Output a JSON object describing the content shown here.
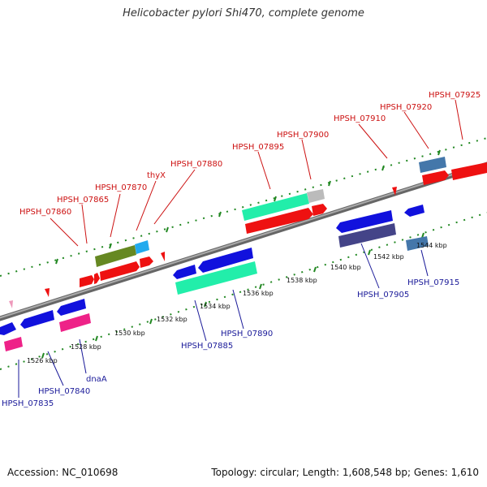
{
  "title": "Helicobacter pylori Shi470, complete genome",
  "footer": {
    "accession": "Accession: NC_010698",
    "topology": "Topology: circular; Length: 1,608,548 bp; Genes: 1,610"
  },
  "colors": {
    "forward_label": "#cc1111",
    "reverse_label": "#1a1a99",
    "red_gene": "#ee1111",
    "blue_gene": "#1111dd",
    "teal_gene": "#22eeaa",
    "olive_gene": "#668822",
    "cyan_gene": "#22aaee",
    "steel_gene": "#4477aa",
    "navy_gene": "#444488",
    "pink_gene": "#ee2288",
    "gray_gene": "#bbbbbb",
    "tick_green": "#228822",
    "backbone": "#888888"
  },
  "kbp_labels": [
    "1526 kbp",
    "1528 kbp",
    "1530 kbp",
    "1532 kbp",
    "1534 kbp",
    "1536 kbp",
    "1538 kbp",
    "1540 kbp",
    "1542 kbp",
    "1544 kbp"
  ],
  "top_labels": [
    "HPSH_07860",
    "HPSH_07865",
    "HPSH_07870",
    "thyX",
    "HPSH_07880",
    "HPSH_07895",
    "HPSH_07900",
    "HPSH_07910",
    "HPSH_07920",
    "HPSH_07925"
  ],
  "bottom_labels": [
    "HPSH_07835",
    "HPSH_07840",
    "dnaA",
    "HPSH_07885",
    "HPSH_07890",
    "HPSH_07905",
    "HPSH_07915"
  ]
}
